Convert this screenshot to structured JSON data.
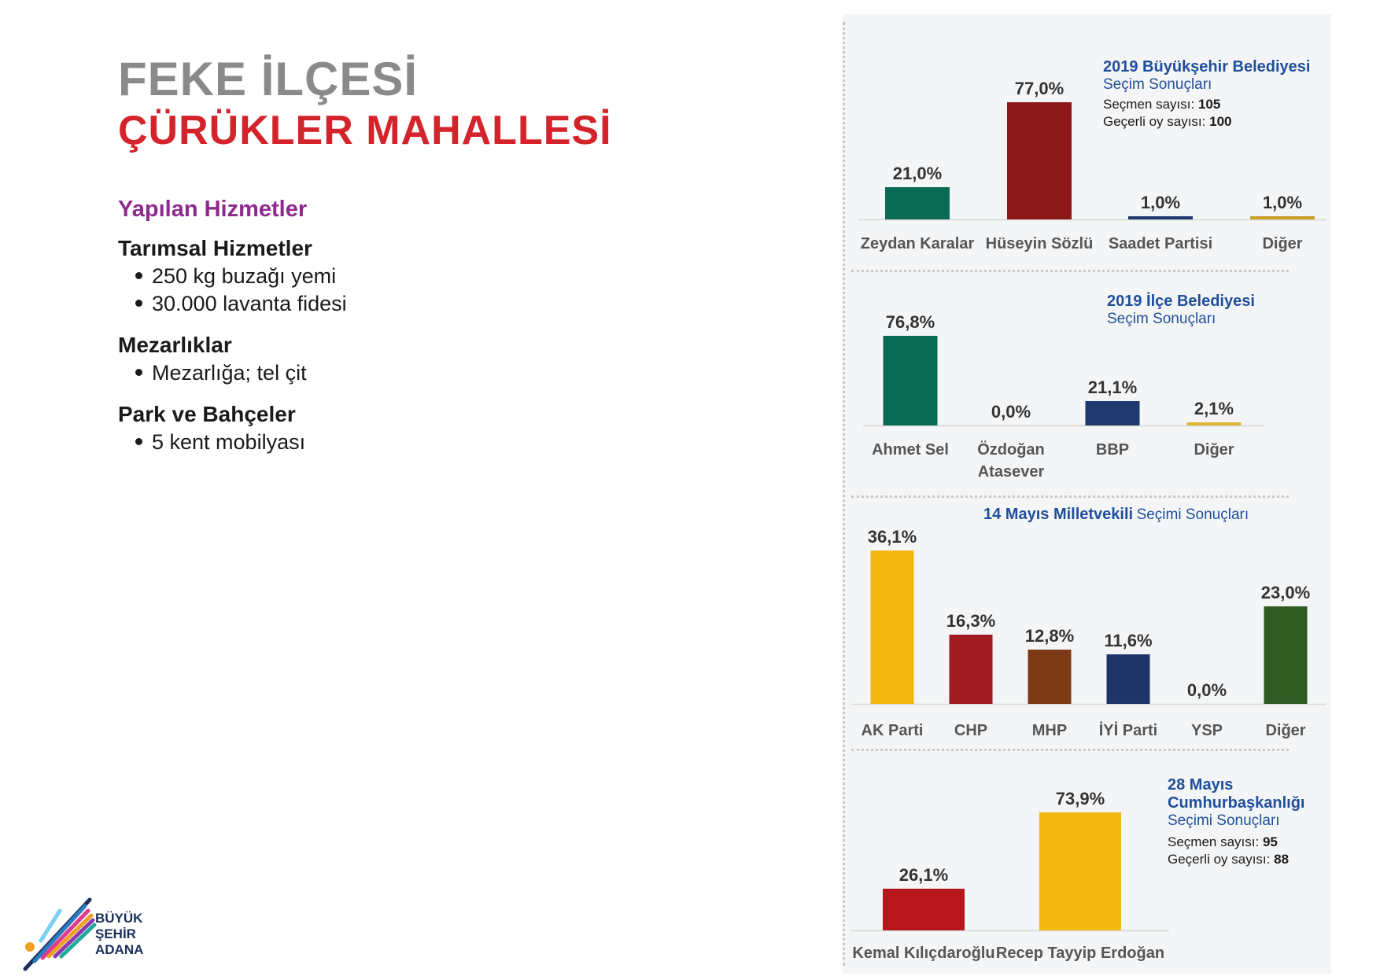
{
  "page": {
    "title_line1": "FEKE İLÇESİ",
    "title_line2": "ÇÜRÜKLER MAHALLESİ",
    "services_heading": "Yapılan Hizmetler",
    "sections": [
      {
        "heading": "Tarımsal Hizmetler",
        "items": [
          "250 kg buzağı yemi",
          "30.000 lavanta fidesi"
        ]
      },
      {
        "heading": "Mezarlıklar",
        "items": [
          "Mezarlığa; tel çit"
        ]
      },
      {
        "heading": "Park ve Bahçeler",
        "items": [
          "5 kent mobilyası"
        ]
      }
    ],
    "logo_text": [
      "BÜYÜK",
      "ŞEHİR",
      "ADANA"
    ]
  },
  "chart_data": [
    {
      "type": "bar",
      "title": "2019 Büyükşehir Belediyesi",
      "subtitle": "Seçim Sonuçları",
      "notes": [
        {
          "label": "Seçmen sayısı: ",
          "value": "105"
        },
        {
          "label": "Geçerli oy sayısı: ",
          "value": "100"
        }
      ],
      "categories": [
        "Zeydan Karalar",
        "Hüseyin Sözlü",
        "Saadet Partisi",
        "Diğer"
      ],
      "values": [
        21.0,
        77.0,
        1.0,
        1.0
      ],
      "value_labels": [
        "21,0%",
        "77,0%",
        "1,0%",
        "1,0%"
      ],
      "colors": [
        "#0a6b55",
        "#8c1719",
        "#1f3a6e",
        "#c9a227"
      ],
      "ylim": [
        0,
        100
      ]
    },
    {
      "type": "bar",
      "title": "2019 İlçe Belediyesi",
      "subtitle": "Seçim Sonuçları",
      "categories": [
        "Ahmet Sel",
        "Özdoğan\nAtasever",
        "BBP",
        "Diğer"
      ],
      "values": [
        76.8,
        0.0,
        21.1,
        2.1
      ],
      "value_labels": [
        "76,8%",
        "0,0%",
        "21,1%",
        "2,1%"
      ],
      "colors": [
        "#0a6b55",
        "#8c1719",
        "#1f3a6e",
        "#e0b836"
      ],
      "ylim": [
        0,
        100
      ]
    },
    {
      "type": "bar",
      "title": "14 Mayıs Milletvekili",
      "subtitle": "Seçimi Sonuçları",
      "categories": [
        "AK Parti",
        "CHP",
        "MHP",
        "İYİ Parti",
        "YSP",
        "Diğer"
      ],
      "values": [
        36.1,
        16.3,
        12.8,
        11.6,
        0.0,
        23.0
      ],
      "value_labels": [
        "36,1%",
        "16,3%",
        "12,8%",
        "11,6%",
        "0,0%",
        "23,0%"
      ],
      "colors": [
        "#f2b80f",
        "#a01c20",
        "#7c3a16",
        "#1f3468",
        "#7a2a6a",
        "#2f5a22"
      ],
      "ylim": [
        0,
        40
      ]
    },
    {
      "type": "bar",
      "title": "28 Mayıs Cumhurbaşkanlığı",
      "subtitle": "Seçimi Sonuçları",
      "notes": [
        {
          "label": "Seçmen sayısı: ",
          "value": "95"
        },
        {
          "label": "Geçerli oy sayısı: ",
          "value": "88"
        }
      ],
      "categories": [
        "Kemal Kılıçdaroğlu",
        "Recep Tayyip Erdoğan"
      ],
      "values": [
        26.1,
        73.9
      ],
      "value_labels": [
        "26,1%",
        "73,9%"
      ],
      "colors": [
        "#b5171d",
        "#f2b80f"
      ],
      "ylim": [
        0,
        100
      ]
    }
  ]
}
